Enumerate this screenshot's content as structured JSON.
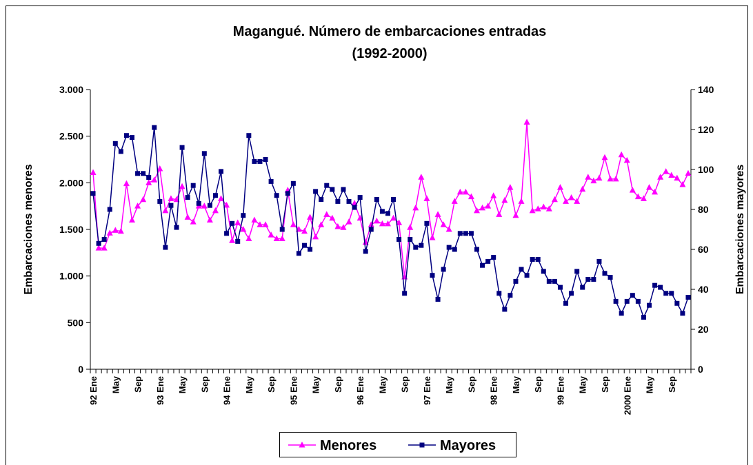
{
  "chart_data": {
    "type": "line",
    "title": "Magangué. Número de embarcaciones entradas",
    "subtitle": "(1992-2000)",
    "y_label": "Embarcaciones menores",
    "y2_label": "Embarcaciones mayores",
    "categories": [
      "92 Ene",
      null,
      null,
      null,
      "May",
      null,
      null,
      null,
      "Sep",
      null,
      null,
      null,
      "93 Ene",
      null,
      null,
      null,
      "May",
      null,
      null,
      null,
      "Sep",
      null,
      null,
      null,
      "94 Ene",
      null,
      null,
      null,
      "May",
      null,
      null,
      null,
      "Sep",
      null,
      null,
      null,
      "95 Ene",
      null,
      null,
      null,
      "May",
      null,
      null,
      null,
      "Sep",
      null,
      null,
      null,
      "96 Ene",
      null,
      null,
      null,
      "May",
      null,
      null,
      null,
      "Sep",
      null,
      null,
      null,
      "97 Ene",
      null,
      null,
      null,
      "May",
      null,
      null,
      null,
      "Sep",
      null,
      null,
      null,
      "98 Ene",
      null,
      null,
      null,
      "May",
      null,
      null,
      null,
      "Sep",
      null,
      null,
      null,
      "99 Ene",
      null,
      null,
      null,
      "May",
      null,
      null,
      null,
      "Sep",
      null,
      null,
      null,
      "2000 Ene",
      null,
      null,
      null,
      "May",
      null,
      null,
      null,
      "Sep",
      null,
      null,
      null
    ],
    "series": [
      {
        "name": "Menores",
        "color": "#ff00ff",
        "marker": "triangle",
        "axis": "y",
        "values": [
          2110,
          1300,
          1300,
          1460,
          1490,
          1480,
          1990,
          1600,
          1750,
          1820,
          2000,
          2030,
          2150,
          1700,
          1830,
          1820,
          1960,
          1630,
          1580,
          1750,
          1750,
          1600,
          1700,
          1830,
          1760,
          1380,
          1570,
          1500,
          1400,
          1600,
          1550,
          1550,
          1440,
          1400,
          1400,
          1920,
          1550,
          1500,
          1480,
          1630,
          1420,
          1550,
          1660,
          1620,
          1530,
          1520,
          1580,
          1780,
          1620,
          1360,
          1550,
          1590,
          1560,
          1560,
          1620,
          1570,
          990,
          1520,
          1730,
          2060,
          1830,
          1410,
          1660,
          1550,
          1500,
          1800,
          1900,
          1900,
          1850,
          1700,
          1730,
          1750,
          1860,
          1660,
          1810,
          1950,
          1650,
          1800,
          2650,
          1700,
          1720,
          1740,
          1720,
          1820,
          1950,
          1800,
          1840,
          1800,
          1930,
          2060,
          2020,
          2050,
          2270,
          2040,
          2040,
          2300,
          2240,
          1920,
          1850,
          1830,
          1950,
          1900,
          2060,
          2120,
          2080,
          2050,
          1980,
          2100
        ]
      },
      {
        "name": "Mayores",
        "color": "#000080",
        "marker": "square",
        "axis": "y2",
        "values": [
          88,
          63,
          65,
          80,
          113,
          109,
          117,
          116,
          98,
          98,
          96,
          121,
          84,
          61,
          82,
          71,
          111,
          86,
          92,
          83,
          108,
          82,
          87,
          99,
          68,
          73,
          64,
          77,
          117,
          104,
          104,
          105,
          94,
          87,
          70,
          88,
          93,
          58,
          62,
          60,
          89,
          85,
          92,
          90,
          84,
          90,
          84,
          81,
          86,
          59,
          70,
          85,
          79,
          78,
          85,
          65,
          38,
          65,
          61,
          62,
          73,
          47,
          35,
          50,
          61,
          60,
          68,
          68,
          68,
          60,
          52,
          54,
          56,
          38,
          30,
          37,
          44,
          50,
          47,
          55,
          55,
          49,
          44,
          44,
          41,
          33,
          38,
          49,
          41,
          45,
          45,
          54,
          48,
          46,
          34,
          28,
          34,
          37,
          34,
          26,
          32,
          42,
          41,
          38,
          38,
          33,
          28,
          36
        ]
      }
    ],
    "ylim": [
      0,
      3000
    ],
    "yticks": [
      0,
      500,
      {
        "value": 1000,
        "label": "1.000"
      },
      {
        "value": 1500,
        "label": "1.500"
      },
      {
        "value": 2000,
        "label": "2.000"
      },
      {
        "value": 2500,
        "label": "2.500"
      },
      {
        "value": 3000,
        "label": "3.000"
      }
    ],
    "y2lim": [
      0,
      140
    ],
    "y2ticks": [
      0,
      20,
      40,
      60,
      80,
      100,
      120,
      140
    ],
    "legend": "bottom"
  }
}
